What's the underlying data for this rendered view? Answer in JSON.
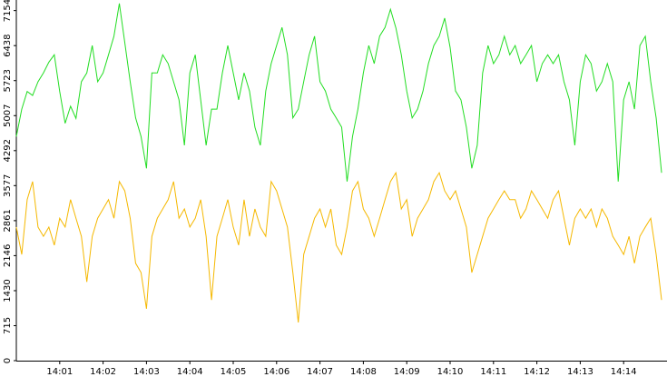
{
  "chart_data": {
    "type": "line",
    "categories": [
      null,
      null,
      null,
      null,
      null,
      null,
      null,
      null,
      "14:01",
      null,
      null,
      null,
      null,
      null,
      null,
      null,
      "14:02",
      null,
      null,
      null,
      null,
      null,
      null,
      null,
      "14:03",
      null,
      null,
      null,
      null,
      null,
      null,
      null,
      "14:04",
      null,
      null,
      null,
      null,
      null,
      null,
      null,
      "14:05",
      null,
      null,
      null,
      null,
      null,
      null,
      null,
      "14:06",
      null,
      null,
      null,
      null,
      null,
      null,
      null,
      "14:07",
      null,
      null,
      null,
      null,
      null,
      null,
      null,
      "14:08",
      null,
      null,
      null,
      null,
      null,
      null,
      null,
      "14:09",
      null,
      null,
      null,
      null,
      null,
      null,
      null,
      "14:10",
      null,
      null,
      null,
      null,
      null,
      null,
      null,
      "14:11",
      null,
      null,
      null,
      null,
      null,
      null,
      null,
      "14:12",
      null,
      null,
      null,
      null,
      null,
      null,
      null,
      "14:13",
      null,
      null,
      null,
      null,
      null,
      null,
      null,
      "14:14",
      null,
      null,
      null,
      null,
      null,
      null,
      null
    ],
    "series": [
      {
        "color": "#22dd22",
        "values": [
          4580,
          5140,
          5500,
          5420,
          5700,
          5880,
          6100,
          6250,
          5500,
          4850,
          5200,
          4950,
          5700,
          5880,
          6440,
          5700,
          5880,
          6250,
          6630,
          7300,
          6500,
          5700,
          4960,
          4580,
          3930,
          5880,
          5880,
          6250,
          6070,
          5700,
          5330,
          4400,
          5880,
          6250,
          5330,
          4400,
          5140,
          5140,
          5880,
          6440,
          5880,
          5330,
          5880,
          5510,
          4770,
          4400,
          5510,
          6070,
          6440,
          6810,
          6250,
          4960,
          5140,
          5700,
          6250,
          6630,
          5700,
          5510,
          5140,
          4960,
          4770,
          3660,
          4580,
          5140,
          5880,
          6440,
          6070,
          6630,
          6810,
          7180,
          6800,
          6250,
          5510,
          4960,
          5140,
          5510,
          6070,
          6440,
          6630,
          7000,
          6400,
          5510,
          5330,
          4770,
          3930,
          4400,
          5880,
          6440,
          6070,
          6250,
          6630,
          6250,
          6440,
          6070,
          6250,
          6440,
          5700,
          6070,
          6250,
          6070,
          6250,
          5700,
          5330,
          4400,
          5700,
          6250,
          6070,
          5510,
          5700,
          6070,
          5700,
          3660,
          5330,
          5700,
          5140,
          6440,
          6630,
          5700,
          4960,
          3840
        ]
      },
      {
        "color": "#f5b800",
        "values": [
          2730,
          2170,
          3290,
          3660,
          2730,
          2540,
          2730,
          2360,
          2910,
          2730,
          3290,
          2910,
          2540,
          1610,
          2540,
          2910,
          3100,
          3290,
          2910,
          3660,
          3470,
          2910,
          1990,
          1800,
          1060,
          2540,
          2910,
          3100,
          3290,
          3660,
          2910,
          3100,
          2730,
          2910,
          3290,
          2540,
          1240,
          2540,
          2910,
          3290,
          2730,
          2360,
          3290,
          2540,
          3100,
          2730,
          2540,
          3660,
          3470,
          3100,
          2730,
          1800,
          780,
          2170,
          2540,
          2910,
          3100,
          2730,
          3100,
          2360,
          2170,
          2730,
          3470,
          3660,
          3100,
          2910,
          2540,
          2910,
          3290,
          3660,
          3840,
          3100,
          3290,
          2540,
          2910,
          3100,
          3290,
          3660,
          3840,
          3470,
          3290,
          3470,
          3100,
          2730,
          1800,
          2170,
          2540,
          2910,
          3100,
          3290,
          3470,
          3290,
          3290,
          2910,
          3100,
          3470,
          3290,
          3100,
          2910,
          3290,
          3470,
          2910,
          2360,
          2910,
          3100,
          2910,
          3100,
          2730,
          3100,
          2910,
          2540,
          2360,
          2170,
          2540,
          1990,
          2540,
          2730,
          2910,
          2170,
          1240
        ]
      }
    ],
    "ylim": [
      0,
      7370
    ],
    "yticks": [
      0,
      715,
      1430,
      2146,
      2861,
      3577,
      4292,
      5007,
      5723,
      6438,
      7154
    ]
  }
}
